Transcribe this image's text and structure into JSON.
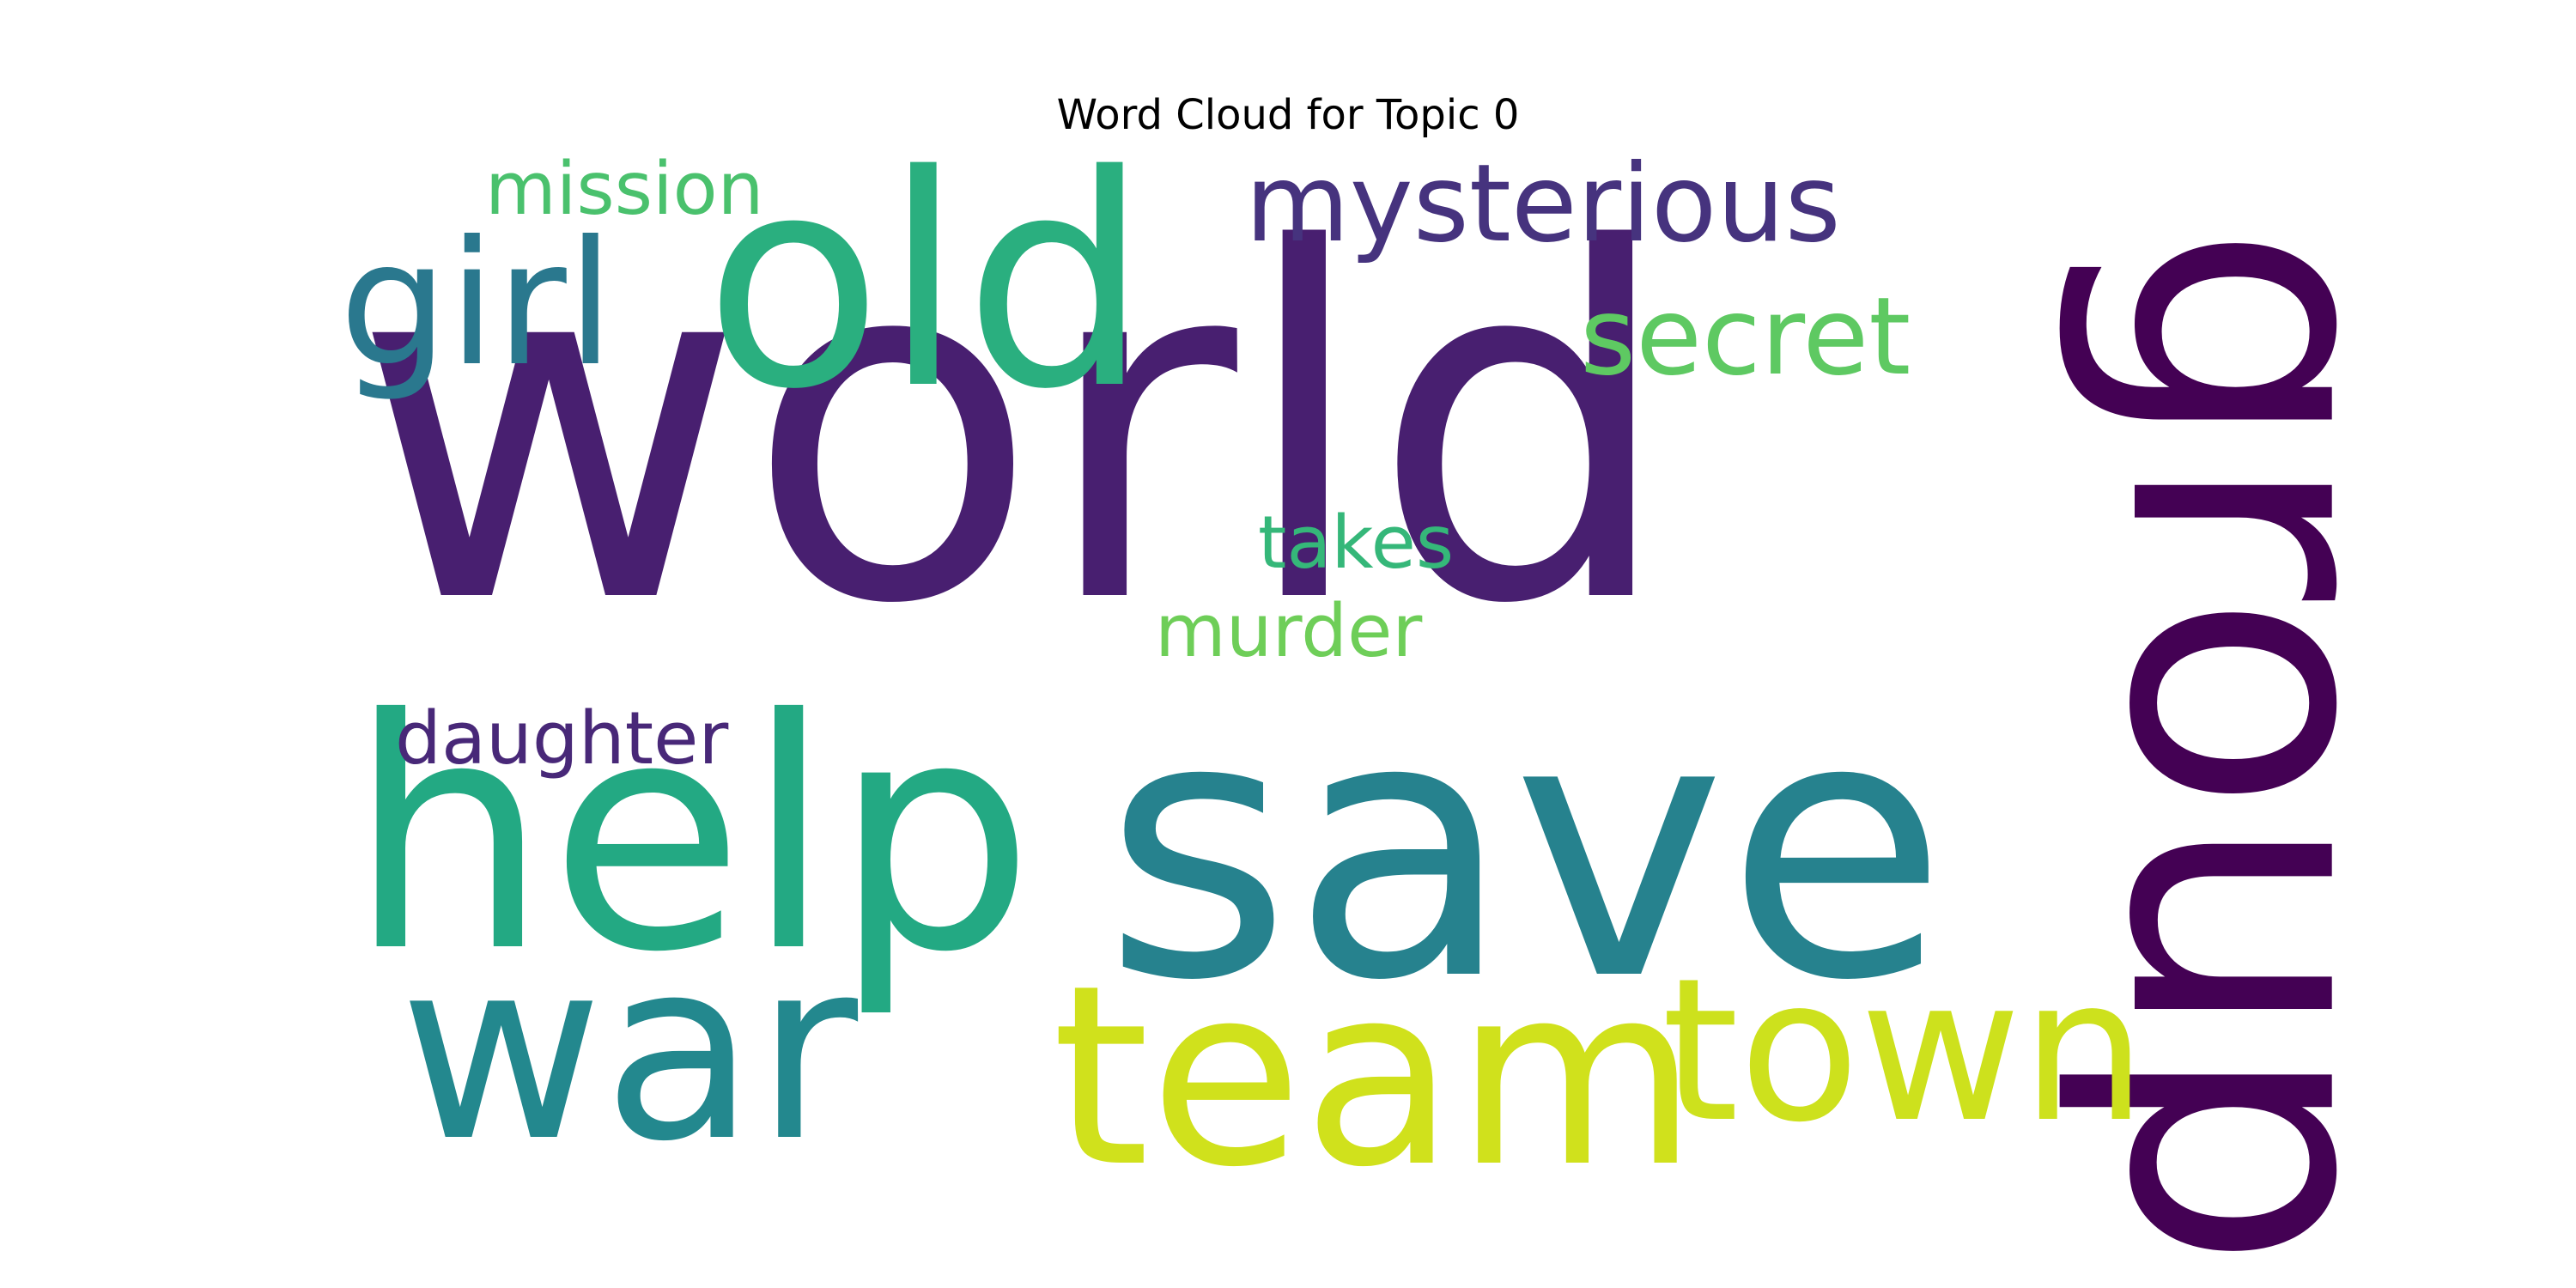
{
  "title": "Word Cloud for Topic 0",
  "words": [
    {
      "text": "world",
      "color": "#481f70",
      "rotated": false
    },
    {
      "text": "save",
      "color": "#26828e",
      "rotated": false
    },
    {
      "text": "help",
      "color": "#23a983",
      "rotated": false
    },
    {
      "text": "old",
      "color": "#2aaf7f",
      "rotated": false
    },
    {
      "text": "group",
      "color": "#440154",
      "rotated": true
    },
    {
      "text": "team",
      "color": "#d0e11c",
      "rotated": false
    },
    {
      "text": "war",
      "color": "#23888e",
      "rotated": false
    },
    {
      "text": "town",
      "color": "#cde11d",
      "rotated": false
    },
    {
      "text": "girl",
      "color": "#2a788e",
      "rotated": false
    },
    {
      "text": "mysterious",
      "color": "#46337e",
      "rotated": false
    },
    {
      "text": "secret",
      "color": "#5ec962",
      "rotated": false
    },
    {
      "text": "mission",
      "color": "#4ac16d",
      "rotated": false
    },
    {
      "text": "takes",
      "color": "#35b779",
      "rotated": false
    },
    {
      "text": "murder",
      "color": "#6ece58",
      "rotated": false
    },
    {
      "text": "daughter",
      "color": "#482878",
      "rotated": false
    }
  ]
}
